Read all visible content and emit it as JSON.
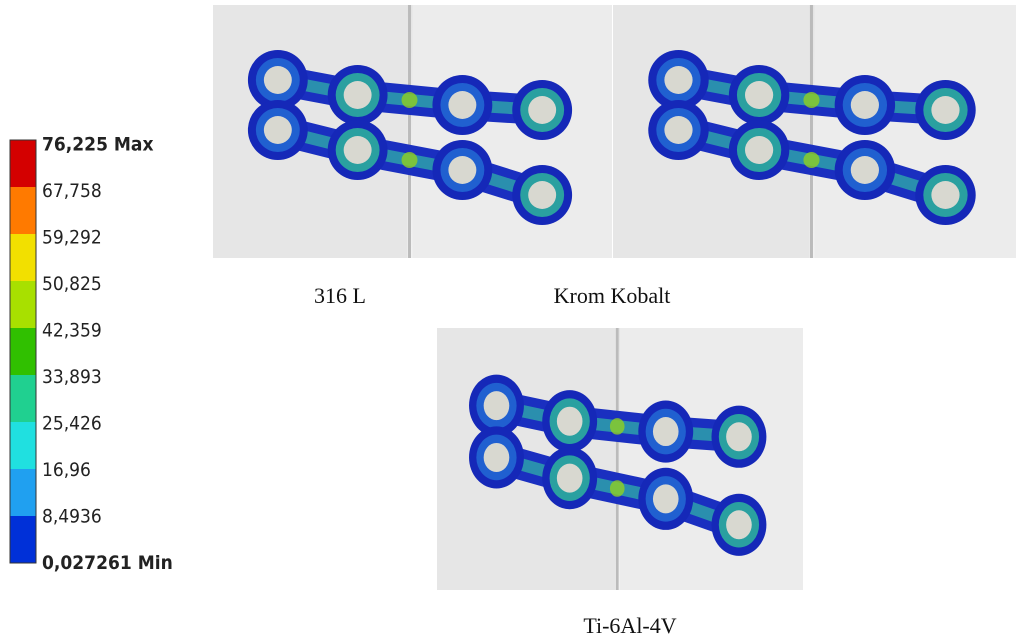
{
  "legend": {
    "labels": [
      "76,225 Max",
      "67,758",
      "59,292",
      "50,825",
      "42,359",
      "33,893",
      "25,426",
      "16,96",
      "8,4936",
      "0,027261 Min"
    ]
  },
  "panels": [
    {
      "caption": "316 L"
    },
    {
      "caption": "Krom Kobalt"
    },
    {
      "caption": "Ti-6Al-4V"
    }
  ]
}
